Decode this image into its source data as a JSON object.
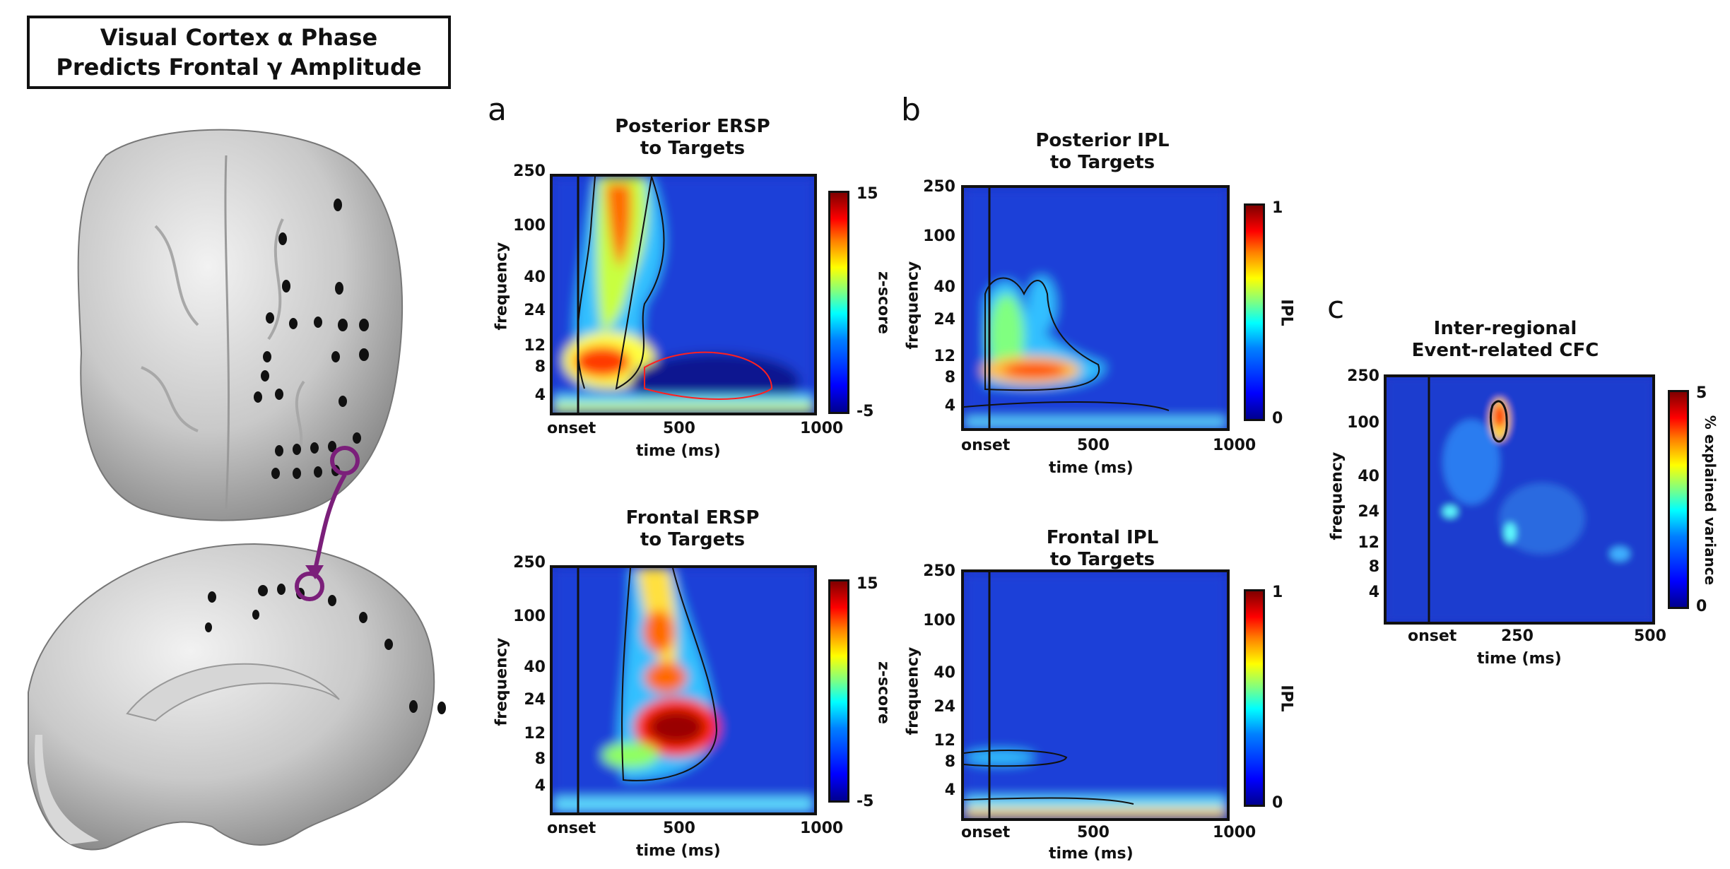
{
  "header": {
    "line1": "Visual Cortex α Phase",
    "line2": "Predicts Frontal γ Amplitude"
  },
  "colormap": [
    "#00008f",
    "#0000ff",
    "#0080ff",
    "#00ffff",
    "#80ff80",
    "#ffff00",
    "#ff8000",
    "#ff0000",
    "#800000"
  ],
  "brain_icon": "brain-surface-3d",
  "panels": {
    "a": {
      "label": "a",
      "top": {
        "title1": "Posterior ERSP",
        "title2": "to Targets"
      },
      "bottom": {
        "title1": "Frontal ERSP",
        "title2": "to Targets"
      },
      "yticks": [
        "250",
        "100",
        "40",
        "24",
        "12",
        "8",
        "4"
      ],
      "xticks": [
        "onset",
        "500",
        "1000"
      ],
      "xlabel": "time (ms)",
      "ylabel": "frequency",
      "cbar_ticks": [
        "15",
        "-5"
      ],
      "cbar_label": "z-score"
    },
    "b": {
      "label": "b",
      "top": {
        "title1": "Posterior IPL",
        "title2": "to Targets"
      },
      "bottom": {
        "title1": "Frontal IPL",
        "title2": "to Targets"
      },
      "yticks": [
        "250",
        "100",
        "40",
        "24",
        "12",
        "8",
        "4"
      ],
      "xticks": [
        "onset",
        "500",
        "1000"
      ],
      "xlabel": "time (ms)",
      "ylabel": "frequency",
      "cbar_ticks": [
        "1",
        "0"
      ],
      "cbar_label": "IPL"
    },
    "c": {
      "label": "c",
      "title1": "Inter-regional",
      "title2": "Event-related CFC",
      "yticks": [
        "250",
        "100",
        "40",
        "24",
        "12",
        "8",
        "4"
      ],
      "xticks": [
        "onset",
        "250",
        "500"
      ],
      "xlabel": "time (ms)",
      "ylabel": "frequency",
      "cbar_ticks": [
        "5",
        "0"
      ],
      "cbar_label": "% explained variance"
    }
  }
}
